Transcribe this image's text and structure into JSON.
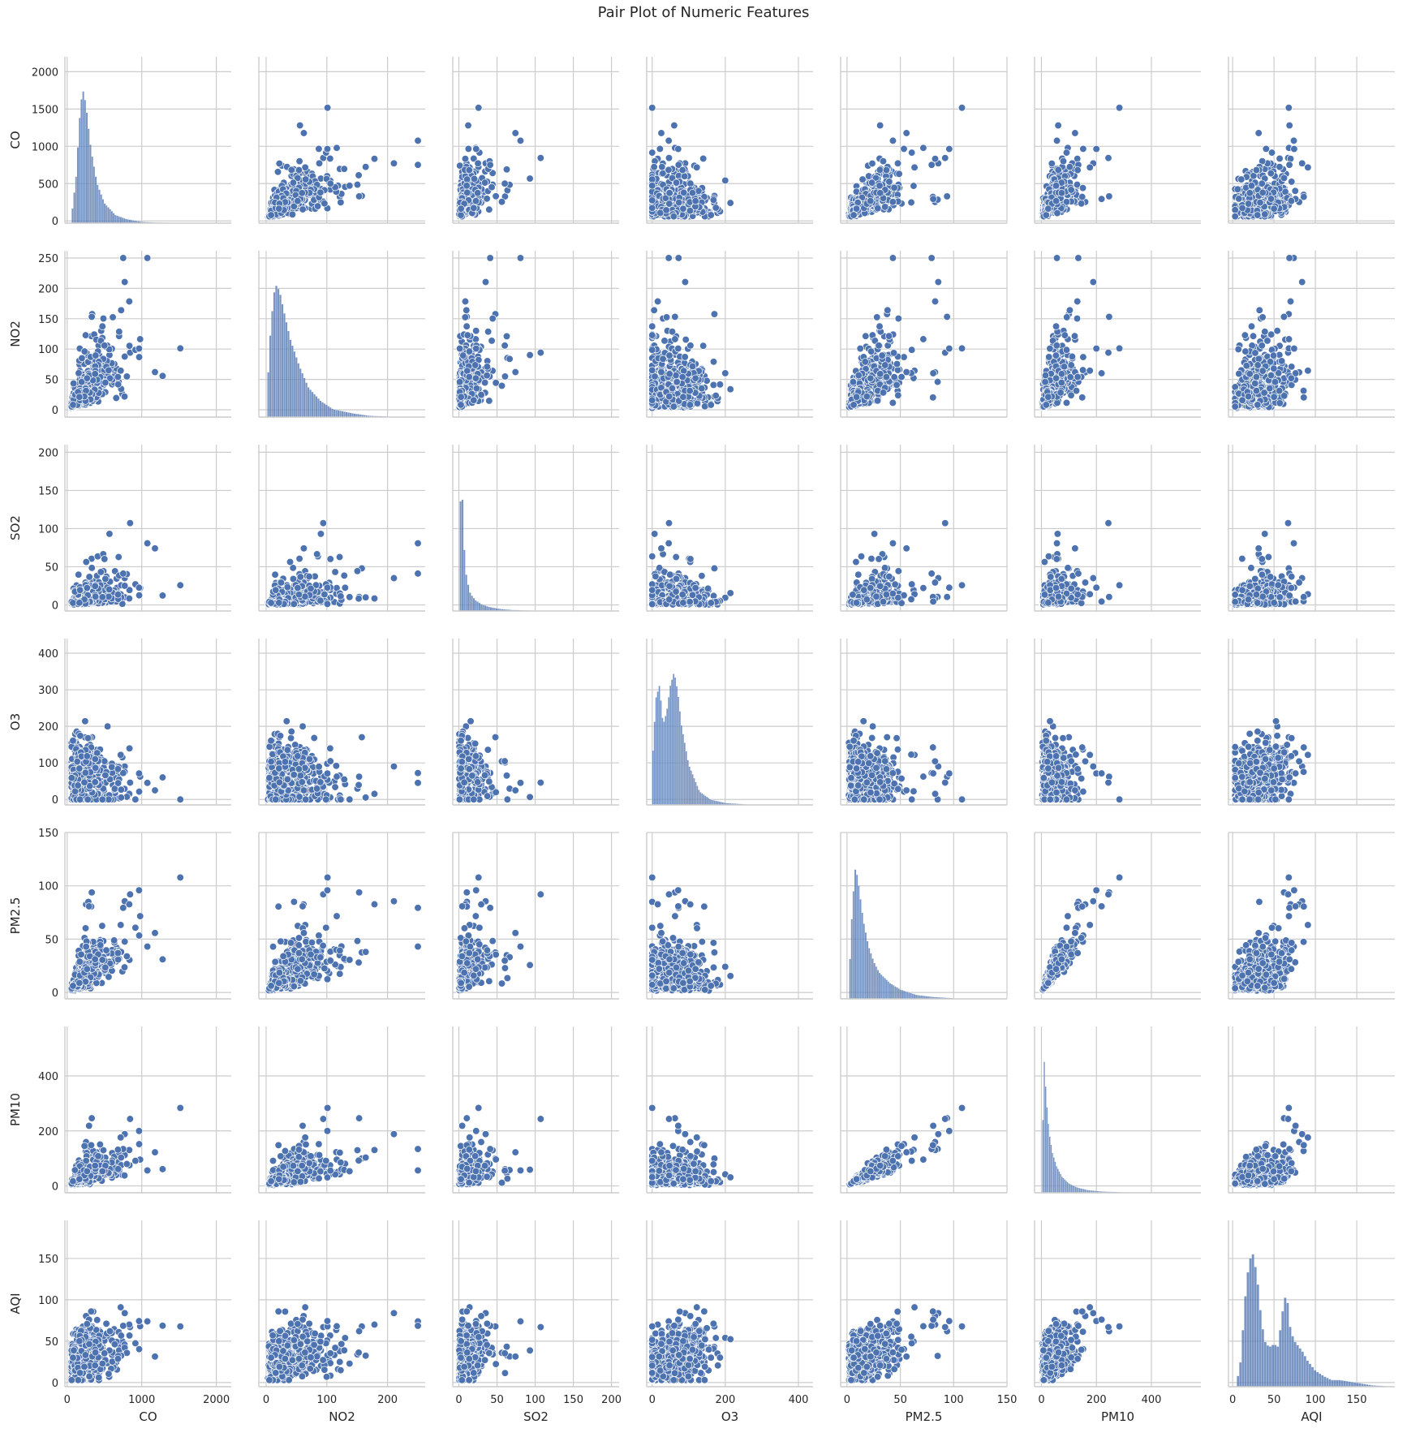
{
  "chart_data": {
    "type": "scatter",
    "title": "Pair Plot of Numeric Features",
    "variables": [
      "CO",
      "NO2",
      "SO2",
      "O3",
      "PM2.5",
      "PM10",
      "AQI"
    ],
    "diagonal": "histogram",
    "marker_color": "#4c72b0",
    "grid": true,
    "axis_ranges": {
      "CO": [
        -30,
        2200
      ],
      "NO2": [
        -12,
        262
      ],
      "SO2": [
        -8,
        210
      ],
      "O3": [
        -15,
        440
      ],
      "PM2.5": [
        -6,
        150
      ],
      "PM10": [
        -25,
        580
      ],
      "AQI": [
        -5,
        196
      ]
    },
    "ticks": {
      "CO": [
        0,
        1000,
        2000
      ],
      "NO2": [
        0,
        100,
        200
      ],
      "SO2": [
        0,
        50,
        100,
        150,
        200
      ],
      "O3": [
        0,
        200,
        400
      ],
      "PM2.5": [
        0,
        50,
        100,
        150
      ],
      "PM10": [
        0,
        200,
        400
      ],
      "AQI": [
        0,
        50,
        100,
        150
      ]
    },
    "y_ticks": {
      "CO": [
        0,
        500,
        1000,
        1500,
        2000
      ],
      "NO2": [
        0,
        50,
        100,
        150,
        200,
        250
      ],
      "SO2": [
        0,
        50,
        100,
        150,
        200
      ],
      "O3": [
        0,
        100,
        200,
        300,
        400
      ],
      "PM2.5": [
        0,
        50,
        100,
        150
      ],
      "PM10": [
        0,
        200,
        400
      ],
      "AQI": [
        0,
        50,
        100,
        150
      ]
    },
    "histograms": {
      "CO": {
        "x": [
          60,
          120,
          180,
          220,
          260,
          320,
          400,
          500,
          650,
          800,
          1000,
          1200,
          1500
        ],
        "counts": [
          0.05,
          0.35,
          0.9,
          1.0,
          0.85,
          0.55,
          0.3,
          0.15,
          0.06,
          0.03,
          0.01,
          0.005,
          0.002
        ]
      },
      "NO2": {
        "x": [
          2,
          8,
          15,
          22,
          30,
          40,
          55,
          70,
          90,
          110,
          140,
          170,
          200
        ],
        "counts": [
          0.2,
          0.7,
          1.0,
          0.95,
          0.78,
          0.58,
          0.38,
          0.22,
          0.12,
          0.06,
          0.03,
          0.01,
          0.005
        ]
      },
      "SO2": {
        "x": [
          1,
          2,
          4,
          6,
          10,
          15,
          22,
          30,
          40,
          55,
          70,
          100,
          150
        ],
        "counts": [
          0.2,
          0.8,
          1.0,
          0.55,
          0.25,
          0.13,
          0.08,
          0.05,
          0.03,
          0.015,
          0.008,
          0.003,
          0.001
        ]
      },
      "O3": {
        "x": [
          0,
          10,
          20,
          30,
          40,
          50,
          60,
          70,
          80,
          100,
          130,
          160,
          200,
          260
        ],
        "counts": [
          0.3,
          0.8,
          0.9,
          0.6,
          0.7,
          0.9,
          1.0,
          0.85,
          0.6,
          0.3,
          0.1,
          0.04,
          0.015,
          0.004
        ]
      },
      "PM2.5": {
        "x": [
          2,
          5,
          8,
          11,
          15,
          20,
          25,
          30,
          40,
          50,
          65,
          80,
          100
        ],
        "counts": [
          0.15,
          0.7,
          1.0,
          0.85,
          0.6,
          0.4,
          0.28,
          0.2,
          0.12,
          0.07,
          0.03,
          0.015,
          0.005
        ]
      },
      "PM10": {
        "x": [
          3,
          10,
          18,
          28,
          40,
          55,
          75,
          100,
          130,
          170,
          220,
          300
        ],
        "counts": [
          0.3,
          1.0,
          0.7,
          0.45,
          0.3,
          0.2,
          0.12,
          0.07,
          0.04,
          0.02,
          0.01,
          0.004
        ]
      },
      "AQI": {
        "x": [
          5,
          10,
          15,
          20,
          25,
          30,
          35,
          40,
          45,
          50,
          55,
          60,
          65,
          70,
          75,
          80,
          85,
          90,
          100,
          110,
          120,
          130,
          140,
          150,
          170,
          185
        ],
        "counts": [
          0.03,
          0.2,
          0.65,
          0.95,
          1.0,
          0.8,
          0.48,
          0.32,
          0.3,
          0.32,
          0.3,
          0.55,
          0.72,
          0.42,
          0.34,
          0.3,
          0.26,
          0.2,
          0.12,
          0.08,
          0.05,
          0.05,
          0.04,
          0.03,
          0.01,
          0.005
        ]
      }
    }
  }
}
